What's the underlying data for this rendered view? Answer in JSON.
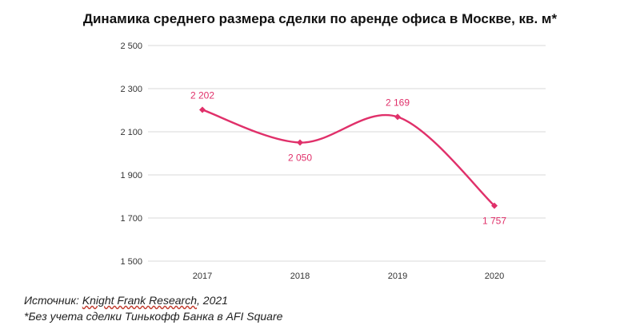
{
  "title": "Динамика среднего размера сделки по аренде офиса в Москве, кв. м*",
  "colors": {
    "line": "#e0306a",
    "label": "#e0306a",
    "grid": "#d9d9d9",
    "axis_text": "#333333"
  },
  "chart_data": {
    "type": "line",
    "categories": [
      "2017",
      "2018",
      "2019",
      "2020"
    ],
    "values": [
      2202,
      2050,
      2169,
      1757
    ],
    "data_labels": [
      "2 202",
      "2 050",
      "2 169",
      "1 757"
    ],
    "y_ticks": [
      1500,
      1700,
      1900,
      2100,
      2300,
      2500
    ],
    "y_tick_labels": [
      "1 500",
      "1 700",
      "1 900",
      "2 100",
      "2 300",
      "2 500"
    ],
    "ylim": [
      1500,
      2500
    ],
    "grid": true,
    "smooth": true,
    "markers": "diamond"
  },
  "footer": {
    "source_prefix": "Источник: ",
    "source_link": "Knight Frank Research",
    "source_suffix": ", 2021",
    "note": "*Без учета сделки Тинькофф Банка в AFI Square"
  }
}
